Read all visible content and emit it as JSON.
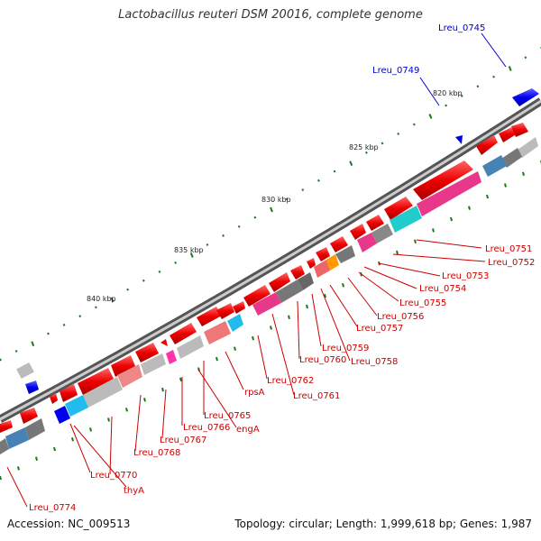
{
  "title": "Lactobacillus reuteri DSM 20016, complete genome",
  "accession_text": "Accession: NC_009513",
  "summary_text": "Topology: circular; Length: 1,999,618 bp; Genes: 1,987",
  "colors": {
    "backbone": "#777777",
    "cds": "#ee0000",
    "regulon_blue": "#0000ee",
    "label_red": "#cc0000",
    "label_blue": "#0000cc",
    "tick_green": "#1a7a1a"
  },
  "scale_labels": [
    "820 kbp",
    "825 kbp",
    "830 kbp",
    "835 kbp",
    "840 kbp"
  ],
  "blue_labels": [
    "Lreu_0745",
    "Lreu_0749"
  ],
  "gene_labels": [
    "Lreu_0751",
    "Lreu_0752",
    "Lreu_0753",
    "Lreu_0754",
    "Lreu_0755",
    "Lreu_0756",
    "Lreu_0757",
    "Lreu_0759",
    "Lreu_0758",
    "Lreu_0760",
    "Lreu_0761",
    "Lreu_0762",
    "rpsA",
    "Lreu_0765",
    "engA",
    "Lreu_0766",
    "Lreu_0767",
    "Lreu_0768",
    "Lreu_0770",
    "thyA",
    "Lreu_0774"
  ]
}
